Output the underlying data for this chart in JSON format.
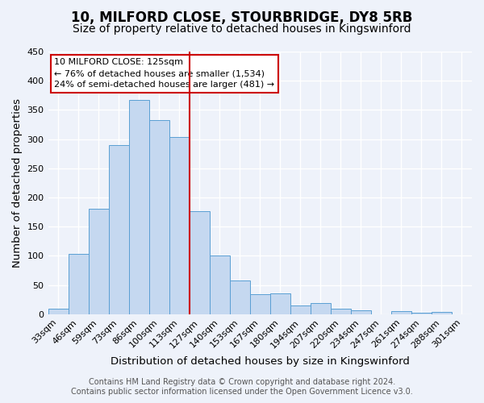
{
  "title": "10, MILFORD CLOSE, STOURBRIDGE, DY8 5RB",
  "subtitle": "Size of property relative to detached houses in Kingswinford",
  "xlabel": "Distribution of detached houses by size in Kingswinford",
  "ylabel": "Number of detached properties",
  "bar_labels": [
    "33sqm",
    "46sqm",
    "59sqm",
    "73sqm",
    "86sqm",
    "100sqm",
    "113sqm",
    "127sqm",
    "140sqm",
    "153sqm",
    "167sqm",
    "180sqm",
    "194sqm",
    "207sqm",
    "220sqm",
    "234sqm",
    "247sqm",
    "261sqm",
    "274sqm",
    "288sqm",
    "301sqm"
  ],
  "bar_values": [
    9,
    103,
    180,
    290,
    367,
    333,
    304,
    176,
    100,
    58,
    34,
    36,
    15,
    19,
    10,
    6,
    0,
    5,
    3,
    4,
    0
  ],
  "bar_color": "#c5d8f0",
  "bar_edge_color": "#5a9fd4",
  "vline_color": "#cc0000",
  "vline_pos": 7.5,
  "ylim": [
    0,
    450
  ],
  "yticks": [
    0,
    50,
    100,
    150,
    200,
    250,
    300,
    350,
    400,
    450
  ],
  "annotation_title": "10 MILFORD CLOSE: 125sqm",
  "annotation_line1": "← 76% of detached houses are smaller (1,534)",
  "annotation_line2": "24% of semi-detached houses are larger (481) →",
  "annotation_box_color": "#ffffff",
  "annotation_box_edge": "#cc0000",
  "footer_line1": "Contains HM Land Registry data © Crown copyright and database right 2024.",
  "footer_line2": "Contains public sector information licensed under the Open Government Licence v3.0.",
  "bg_color": "#eef2fa",
  "grid_color": "#ffffff",
  "title_fontsize": 12,
  "subtitle_fontsize": 10,
  "axis_label_fontsize": 9.5,
  "tick_fontsize": 8,
  "footer_fontsize": 7
}
